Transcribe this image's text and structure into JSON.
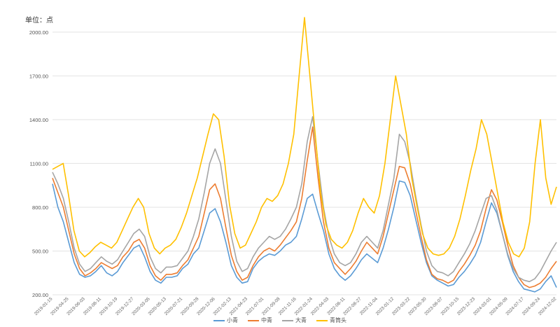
{
  "chart_data": {
    "type": "line",
    "unit_label": "单位：点",
    "ylim": [
      200,
      2100
    ],
    "y_ticks": [
      "200.00",
      "500.00",
      "800.00",
      "1100.00",
      "1400.00",
      "1700.00",
      "2000.00"
    ],
    "x_ticks": [
      "2019-01-15",
      "2019-04-25",
      "2019-06-03",
      "2019-08-11",
      "2019-10-19",
      "2019-12-27",
      "2020-03-05",
      "2020-05-13",
      "2020-07-21",
      "2020-09-28",
      "2020-12-06",
      "2021-02-13",
      "2021-04-23",
      "2021-07-01",
      "2021-09-08",
      "2021-11-16",
      "2022-01-24",
      "2022-04-03",
      "2022-06-11",
      "2022-08-27",
      "2022-11-04",
      "2023-01-12",
      "2023-03-22",
      "2023-05-30",
      "2023-08-07",
      "2023-10-15",
      "2023-12-23",
      "2024-03-01",
      "2024-05-09",
      "2024-07-17",
      "2024-09-24",
      "2024-12-02"
    ],
    "grid": "horizontal",
    "legend_position": "bottom",
    "series": [
      {
        "name": "小青",
        "color": "#5B9BD5",
        "values": [
          960,
          800,
          700,
          560,
          420,
          340,
          320,
          330,
          360,
          400,
          350,
          330,
          360,
          420,
          470,
          520,
          540,
          460,
          360,
          300,
          280,
          320,
          320,
          330,
          380,
          410,
          480,
          520,
          640,
          760,
          790,
          700,
          560,
          400,
          320,
          280,
          290,
          380,
          430,
          460,
          480,
          470,
          500,
          540,
          560,
          600,
          720,
          860,
          890,
          760,
          640,
          480,
          380,
          330,
          300,
          330,
          380,
          440,
          480,
          450,
          420,
          520,
          650,
          800,
          980,
          970,
          880,
          720,
          560,
          420,
          330,
          300,
          280,
          260,
          270,
          320,
          360,
          410,
          470,
          560,
          700,
          830,
          760,
          620,
          470,
          360,
          290,
          240,
          230,
          220,
          240,
          290,
          330,
          250
        ]
      },
      {
        "name": "中青",
        "color": "#ED7D31",
        "values": [
          1000,
          900,
          800,
          640,
          480,
          380,
          330,
          350,
          380,
          420,
          400,
          380,
          400,
          460,
          500,
          560,
          580,
          520,
          400,
          330,
          300,
          340,
          340,
          350,
          400,
          440,
          520,
          600,
          760,
          920,
          960,
          860,
          660,
          470,
          360,
          300,
          320,
          400,
          460,
          500,
          520,
          500,
          540,
          590,
          640,
          700,
          860,
          1120,
          1350,
          1000,
          700,
          520,
          420,
          380,
          340,
          380,
          430,
          500,
          560,
          520,
          480,
          600,
          760,
          920,
          1080,
          1070,
          960,
          780,
          600,
          440,
          340,
          310,
          300,
          280,
          300,
          360,
          410,
          470,
          540,
          640,
          790,
          920,
          850,
          700,
          540,
          400,
          320,
          270,
          250,
          260,
          280,
          320,
          380,
          430
        ]
      },
      {
        "name": "大青",
        "color": "#A5A5A5",
        "values": [
          1040,
          960,
          860,
          700,
          520,
          410,
          360,
          380,
          420,
          460,
          430,
          410,
          440,
          500,
          560,
          620,
          650,
          600,
          460,
          380,
          350,
          390,
          390,
          400,
          450,
          500,
          600,
          720,
          900,
          1100,
          1200,
          1100,
          850,
          600,
          430,
          360,
          380,
          460,
          520,
          560,
          600,
          580,
          600,
          650,
          720,
          800,
          960,
          1250,
          1420,
          1100,
          800,
          600,
          480,
          420,
          400,
          420,
          480,
          560,
          600,
          560,
          520,
          640,
          820,
          1000,
          1300,
          1250,
          1100,
          880,
          680,
          500,
          400,
          360,
          350,
          330,
          360,
          420,
          480,
          550,
          640,
          750,
          860,
          880,
          780,
          620,
          480,
          380,
          320,
          300,
          290,
          310,
          360,
          430,
          500,
          560
        ]
      },
      {
        "name": "青筒头",
        "color": "#FFC000",
        "values": [
          1060,
          1080,
          1100,
          880,
          640,
          500,
          460,
          490,
          530,
          560,
          540,
          520,
          560,
          640,
          720,
          800,
          860,
          800,
          620,
          520,
          480,
          520,
          540,
          580,
          660,
          760,
          880,
          1000,
          1150,
          1300,
          1440,
          1400,
          1150,
          820,
          620,
          520,
          540,
          620,
          700,
          800,
          860,
          840,
          880,
          960,
          1100,
          1300,
          1700,
          2100,
          1700,
          1300,
          900,
          680,
          580,
          540,
          520,
          560,
          640,
          760,
          860,
          800,
          760,
          880,
          1100,
          1400,
          1700,
          1500,
          1300,
          1000,
          800,
          620,
          520,
          480,
          470,
          480,
          520,
          600,
          720,
          880,
          1050,
          1200,
          1400,
          1300,
          1100,
          900,
          700,
          560,
          480,
          460,
          520,
          700,
          1100,
          1400,
          1000,
          820,
          940
        ]
      }
    ]
  }
}
